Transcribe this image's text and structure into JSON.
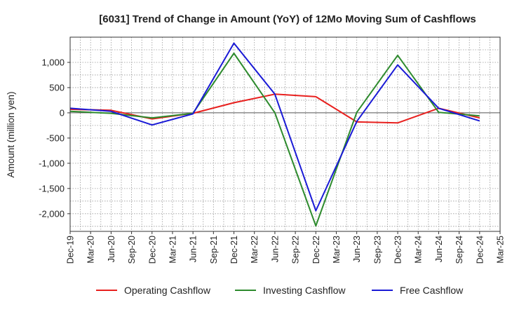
{
  "chart_data": {
    "type": "line",
    "title": "[6031]  Trend of Change in Amount (YoY) of 12Mo Moving Sum of Cashflows",
    "xlabel": "",
    "ylabel": "Amount (million yen)",
    "ylim": [
      -2350,
      1500
    ],
    "yticks": [
      1000,
      500,
      0,
      -500,
      -1000,
      -1500,
      -2000
    ],
    "ytick_labels": [
      "1,000",
      "500",
      "0",
      "-500",
      "-1,000",
      "-1,500",
      "-2,000"
    ],
    "categories": [
      "Dec-19",
      "Mar-20",
      "Jun-20",
      "Sep-20",
      "Dec-20",
      "Mar-21",
      "Jun-21",
      "Sep-21",
      "Dec-21",
      "Mar-22",
      "Jun-22",
      "Sep-22",
      "Dec-22",
      "Mar-23",
      "Jun-23",
      "Sep-23",
      "Dec-23",
      "Mar-24",
      "Jun-24",
      "Sep-24",
      "Dec-24",
      "Mar-25"
    ],
    "x": [
      "Dec-19",
      "Jun-20",
      "Dec-20",
      "Jun-21",
      "Dec-21",
      "Jun-22",
      "Dec-22",
      "Jun-23",
      "Dec-23",
      "Jun-24",
      "Dec-24"
    ],
    "series": [
      {
        "name": "Operating Cashflow",
        "color": "#e8201e",
        "values": [
          70,
          50,
          -120,
          -10,
          200,
          370,
          320,
          -180,
          -200,
          90,
          -100
        ]
      },
      {
        "name": "Investing Cashflow",
        "color": "#2e8b2e",
        "values": [
          30,
          -10,
          -100,
          -10,
          1180,
          0,
          -2240,
          10,
          1140,
          10,
          -60
        ]
      },
      {
        "name": "Free Cashflow",
        "color": "#1a1ad6",
        "values": [
          90,
          30,
          -240,
          -20,
          1380,
          370,
          -1940,
          -170,
          950,
          90,
          -160
        ]
      }
    ],
    "legend_position": "bottom"
  }
}
